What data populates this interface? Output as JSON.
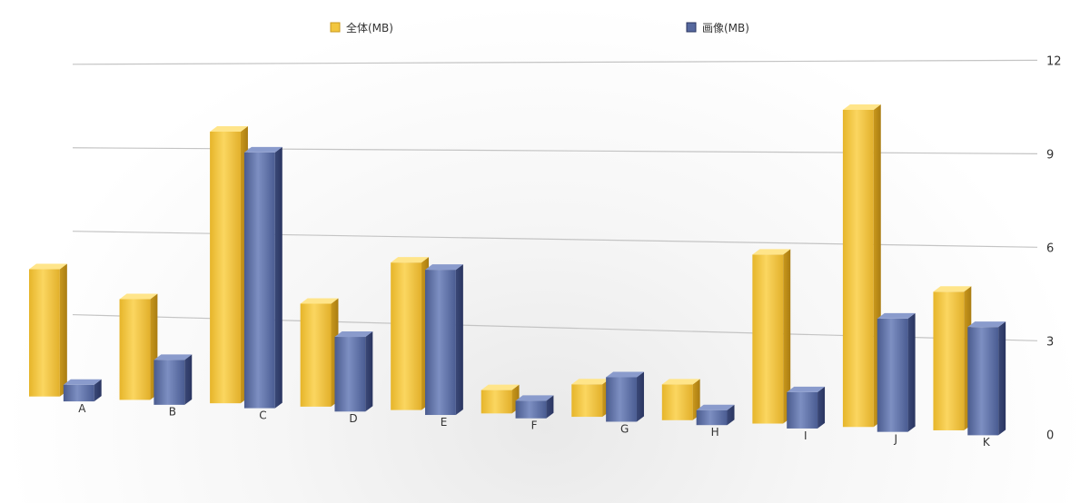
{
  "chart_data": {
    "type": "bar",
    "categories": [
      "A",
      "B",
      "C",
      "D",
      "E",
      "F",
      "G",
      "H",
      "I",
      "J",
      "K"
    ],
    "series": [
      {
        "name": "全体(MB)",
        "values": [
          4.6,
          3.6,
          9.6,
          3.6,
          5.1,
          0.8,
          1.1,
          1.2,
          5.6,
          10.4,
          4.5
        ]
      },
      {
        "name": "画像(MB)",
        "values": [
          0.6,
          1.6,
          9.0,
          2.6,
          5.0,
          0.6,
          1.5,
          0.5,
          1.2,
          3.7,
          3.5
        ]
      }
    ],
    "y_ticks": [
      "0",
      "3",
      "6",
      "9",
      "12"
    ],
    "ylim": [
      0,
      12
    ],
    "grid": true,
    "legend_position": "top",
    "colors": {
      "series1": "#f2c63f",
      "series2": "#56689e"
    }
  }
}
